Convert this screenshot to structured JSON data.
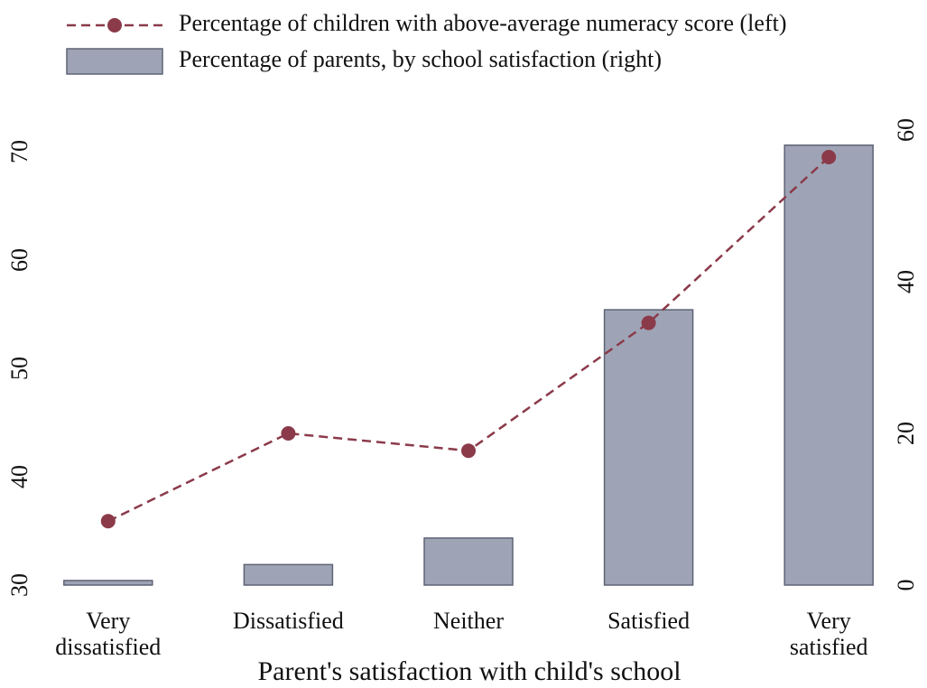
{
  "chart_data": {
    "type": "bar-line",
    "x_label": "Parent's satisfaction with child's school",
    "categories": [
      "Very dissatisfied",
      "Dissatisfied",
      "Neither",
      "Satisfied",
      "Very satisfied"
    ],
    "series": [
      {
        "name": "Percentage of children with above-average numeracy score (left)",
        "type": "line",
        "color": "#8b3a4a",
        "values": [
          35.9,
          44.0,
          42.4,
          54.2,
          69.5
        ]
      },
      {
        "name": "Percentage of parents, by school satisfaction (right)",
        "type": "bar",
        "axis": "y2",
        "color": "#9ea4b5",
        "values": [
          0.6,
          2.7,
          6.2,
          36.3,
          58.0
        ]
      }
    ],
    "ylim": [
      30,
      72
    ],
    "yticks": [
      30,
      40,
      50,
      60,
      70
    ],
    "y2lim": [
      0,
      60
    ],
    "y2ticks": [
      0,
      20,
      40,
      60
    ],
    "legend": "top-left"
  }
}
